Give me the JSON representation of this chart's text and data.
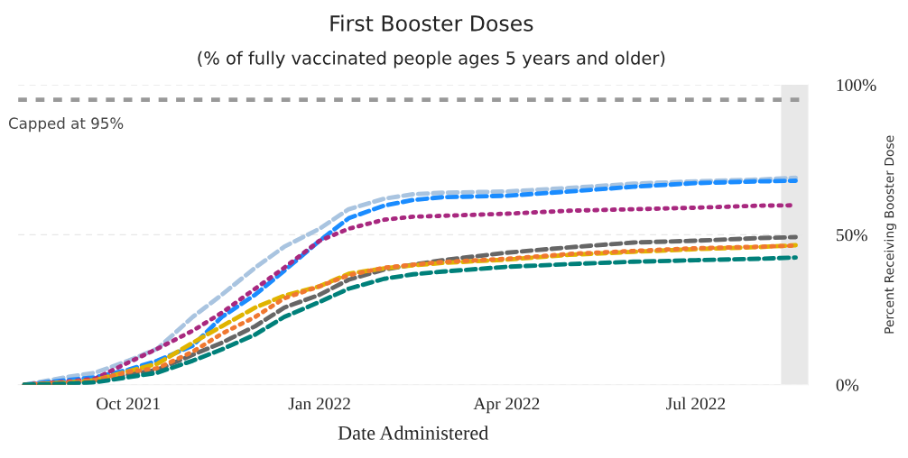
{
  "chart_data": {
    "type": "line",
    "title": "First Booster Doses",
    "subtitle": "(% of fully vaccinated people ages 5 years and older)",
    "xlabel": "Date Administered",
    "ylabel": "Percent Receiving Booster Dose",
    "x": [
      "2021-08-12",
      "2021-09-01",
      "2021-09-15",
      "2021-10-01",
      "2021-10-15",
      "2021-11-01",
      "2021-11-15",
      "2021-12-01",
      "2021-12-15",
      "2022-01-01",
      "2022-01-15",
      "2022-02-01",
      "2022-02-15",
      "2022-03-01",
      "2022-04-01",
      "2022-05-01",
      "2022-06-01",
      "2022-07-01",
      "2022-08-01",
      "2022-08-18"
    ],
    "series": [
      {
        "color": "#a9c4e0",
        "line_style": "dashed",
        "values": [
          0,
          2.5,
          4,
          8,
          12,
          22.6,
          30,
          39,
          46,
          52,
          58.5,
          62,
          63.5,
          64,
          64.4,
          65.6,
          67,
          67.8,
          68.4,
          69
        ]
      },
      {
        "color": "#1a8cff",
        "line_style": "dashed",
        "values": [
          0,
          1.5,
          2.5,
          5,
          8,
          13,
          22.6,
          30,
          38,
          48,
          55.5,
          59.7,
          61.6,
          62.5,
          63,
          64.4,
          66,
          67.2,
          67.8,
          68
        ]
      },
      {
        "color": "#a8287f",
        "line_style": "dotted",
        "values": [
          0,
          1,
          2,
          7.4,
          12,
          18,
          24,
          32,
          39,
          48,
          52,
          55,
          56,
          56.3,
          57,
          58,
          58.5,
          59,
          59.7,
          59.8
        ]
      },
      {
        "color": "#666666",
        "line_style": "dashed",
        "values": [
          0,
          0.5,
          1,
          3.4,
          5,
          10,
          14,
          19.5,
          25.7,
          30,
          35,
          38.4,
          40,
          41.5,
          44,
          45.8,
          47.4,
          48,
          48.9,
          49.2
        ]
      },
      {
        "color": "#e0b400",
        "line_style": "dashed",
        "values": [
          0,
          0.7,
          1.5,
          4.5,
          7,
          14,
          19.5,
          25.7,
          29.7,
          32.8,
          37,
          38.8,
          39.8,
          40.6,
          41.7,
          43.3,
          44.3,
          45.2,
          45.9,
          46.5
        ]
      },
      {
        "color": "#f07830",
        "line_style": "dotted",
        "values": [
          0,
          0.7,
          1.5,
          4.3,
          5.5,
          11,
          17,
          22.6,
          28.8,
          32.8,
          36.5,
          39,
          40,
          40.9,
          42,
          43.6,
          44.6,
          45.5,
          46,
          46.4
        ]
      },
      {
        "color": "#00807a",
        "line_style": "dashed",
        "values": [
          0,
          0.3,
          0.8,
          2.5,
          4,
          8,
          11.8,
          16.7,
          22.6,
          27.6,
          32,
          35.3,
          36.8,
          37.7,
          39.3,
          40.2,
          41,
          41.5,
          42,
          42.4
        ]
      }
    ],
    "xlim": [
      "2021-08-09",
      "2022-08-24"
    ],
    "xticks": [
      {
        "value": "2021-10-01",
        "label": "Oct 2021"
      },
      {
        "value": "2022-01-01",
        "label": "Jan 2022"
      },
      {
        "value": "2022-04-01",
        "label": "Apr 2022"
      },
      {
        "value": "2022-07-01",
        "label": "Jul 2022"
      }
    ],
    "ylim": [
      0,
      100
    ],
    "yticks": [
      {
        "value": 0,
        "label": "0%"
      },
      {
        "value": 50,
        "label": "50%"
      },
      {
        "value": 100,
        "label": "100%"
      }
    ],
    "ref_lines": [
      {
        "axis": "y",
        "value": 95,
        "label": "Capped at 95%",
        "color": "#999999",
        "line_style": "dashed"
      }
    ],
    "bands": [
      {
        "axis": "x",
        "from": "2022-08-11",
        "to": "2022-08-24",
        "color": "#e8e8e8"
      }
    ],
    "grid": "y",
    "legend": false
  }
}
